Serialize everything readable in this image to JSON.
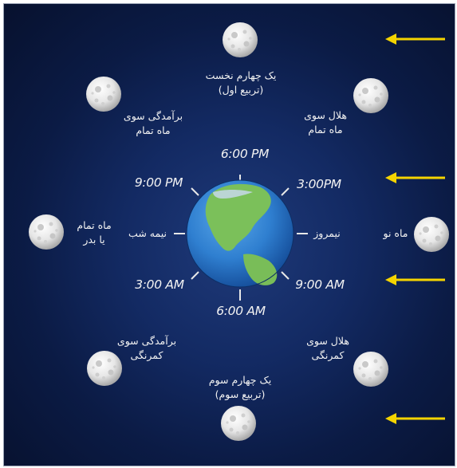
{
  "times": {
    "t_6pm": "6:00 PM",
    "t_9pm": "9:00 PM",
    "t_3pm": "3:00PM",
    "t_3am": "3:00 AM",
    "t_9am": "9:00 AM",
    "t_6am": "6:00 AM"
  },
  "earth_labels": {
    "midnight": "نیمه شب",
    "noon": "نیمروز"
  },
  "phases": {
    "new_moon": "ماه نو",
    "waxing_crescent": "هلال سوی\nماه تمام",
    "first_quarter": "یک چهارم نخست\n(تربیع اول)",
    "waxing_gibbous": "برآمدگی سوی\nماه تمام",
    "full_moon": "ماه تمام\nیا بدر",
    "waning_gibbous": "برآمدگی سوی\nکمرنگی",
    "third_quarter": "یک چهارم سوم\n(تربیع سوم)",
    "waning_crescent": "هلال سوی\nکمرنگی"
  },
  "colors": {
    "background": "#0b1b45",
    "sunlight_arrows": "#f5d400",
    "text": "#f2f2f2"
  }
}
